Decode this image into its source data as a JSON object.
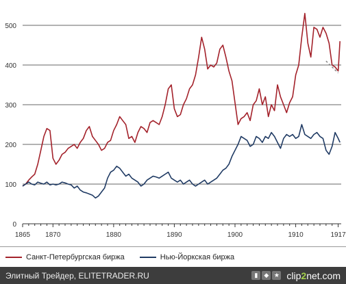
{
  "chart_data": {
    "type": "line",
    "title": "",
    "xlabel": "",
    "ylabel": "",
    "xlim": [
      1865,
      1917.5
    ],
    "ylim": [
      0,
      550
    ],
    "yticks": [
      0,
      100,
      200,
      300,
      400,
      500
    ],
    "xticks": [
      "1865",
      "1870",
      "1880",
      "1890",
      "1900",
      "1910",
      "1917"
    ],
    "xtick_values": [
      1865,
      1870,
      1880,
      1890,
      1900,
      1910,
      1917
    ],
    "grid": "horizontal",
    "legend": "bottom",
    "series": [
      {
        "name": "Санкт-Петербургская биржа",
        "color": "#a3212a",
        "x": [
          1865.0,
          1865.5,
          1866.0,
          1866.5,
          1867.0,
          1867.5,
          1868.0,
          1868.5,
          1869.0,
          1869.5,
          1870.0,
          1870.5,
          1871.0,
          1871.5,
          1872.0,
          1872.5,
          1873.0,
          1873.5,
          1874.0,
          1874.5,
          1875.0,
          1875.5,
          1876.0,
          1876.5,
          1877.0,
          1877.5,
          1878.0,
          1878.5,
          1879.0,
          1879.5,
          1880.0,
          1880.5,
          1881.0,
          1881.5,
          1882.0,
          1882.5,
          1883.0,
          1883.5,
          1884.0,
          1884.5,
          1885.0,
          1885.5,
          1886.0,
          1886.5,
          1887.0,
          1887.5,
          1888.0,
          1888.5,
          1889.0,
          1889.5,
          1890.0,
          1890.5,
          1891.0,
          1891.5,
          1892.0,
          1892.5,
          1893.0,
          1893.5,
          1894.0,
          1894.5,
          1895.0,
          1895.5,
          1896.0,
          1896.5,
          1897.0,
          1897.5,
          1898.0,
          1898.5,
          1899.0,
          1899.5,
          1900.0,
          1900.5,
          1901.0,
          1901.5,
          1902.0,
          1902.5,
          1903.0,
          1903.5,
          1904.0,
          1904.5,
          1905.0,
          1905.5,
          1906.0,
          1906.5,
          1907.0,
          1907.5,
          1908.0,
          1908.5,
          1909.0,
          1909.5,
          1910.0,
          1910.5,
          1911.0,
          1911.5,
          1912.0,
          1912.5,
          1913.0,
          1913.5,
          1914.0,
          1914.5,
          1915.0,
          1915.5,
          1916.0,
          1916.5,
          1917.0,
          1917.3
        ],
        "y": [
          95,
          100,
          110,
          118,
          125,
          150,
          185,
          220,
          240,
          235,
          165,
          150,
          160,
          175,
          180,
          190,
          195,
          200,
          190,
          205,
          215,
          235,
          245,
          220,
          210,
          200,
          185,
          190,
          205,
          210,
          235,
          250,
          270,
          260,
          250,
          215,
          220,
          205,
          230,
          245,
          240,
          230,
          255,
          260,
          255,
          250,
          270,
          300,
          340,
          350,
          290,
          270,
          275,
          300,
          315,
          340,
          350,
          375,
          420,
          470,
          440,
          390,
          400,
          395,
          405,
          440,
          450,
          420,
          385,
          360,
          305,
          250,
          265,
          270,
          280,
          260,
          300,
          310,
          340,
          300,
          320,
          270,
          300,
          285,
          350,
          320,
          300,
          280,
          305,
          320,
          375,
          400,
          470,
          530,
          455,
          420,
          495,
          490,
          470,
          495,
          480,
          455,
          400,
          395,
          385,
          460
        ]
      },
      {
        "name": "Нью-Йоркская биржа",
        "color": "#1f3a63",
        "x": [
          1865.0,
          1865.5,
          1866.0,
          1866.5,
          1867.0,
          1867.5,
          1868.0,
          1868.5,
          1869.0,
          1869.5,
          1870.0,
          1870.5,
          1871.0,
          1871.5,
          1872.0,
          1872.5,
          1873.0,
          1873.5,
          1874.0,
          1874.5,
          1875.0,
          1875.5,
          1876.0,
          1876.5,
          1877.0,
          1877.5,
          1878.0,
          1878.5,
          1879.0,
          1879.5,
          1880.0,
          1880.5,
          1881.0,
          1881.5,
          1882.0,
          1882.5,
          1883.0,
          1883.5,
          1884.0,
          1884.5,
          1885.0,
          1885.5,
          1886.0,
          1886.5,
          1887.0,
          1887.5,
          1888.0,
          1888.5,
          1889.0,
          1889.5,
          1890.0,
          1890.5,
          1891.0,
          1891.5,
          1892.0,
          1892.5,
          1893.0,
          1893.5,
          1894.0,
          1894.5,
          1895.0,
          1895.5,
          1896.0,
          1896.5,
          1897.0,
          1897.5,
          1898.0,
          1898.5,
          1899.0,
          1899.5,
          1900.0,
          1900.5,
          1901.0,
          1901.5,
          1902.0,
          1902.5,
          1903.0,
          1903.5,
          1904.0,
          1904.5,
          1905.0,
          1905.5,
          1906.0,
          1906.5,
          1907.0,
          1907.5,
          1908.0,
          1908.5,
          1909.0,
          1909.5,
          1910.0,
          1910.5,
          1911.0,
          1911.5,
          1912.0,
          1912.5,
          1913.0,
          1913.5,
          1914.0,
          1914.5,
          1915.0,
          1915.5,
          1916.0,
          1916.5,
          1917.0,
          1917.3
        ],
        "y": [
          95,
          100,
          105,
          100,
          98,
          105,
          102,
          100,
          105,
          98,
          100,
          98,
          100,
          105,
          103,
          100,
          98,
          90,
          95,
          85,
          80,
          78,
          75,
          72,
          65,
          70,
          80,
          90,
          115,
          130,
          135,
          145,
          140,
          130,
          120,
          125,
          115,
          110,
          105,
          95,
          100,
          110,
          115,
          120,
          118,
          115,
          120,
          125,
          130,
          115,
          110,
          105,
          110,
          100,
          105,
          110,
          100,
          95,
          100,
          105,
          110,
          100,
          105,
          110,
          115,
          125,
          135,
          140,
          150,
          170,
          185,
          200,
          220,
          215,
          210,
          195,
          200,
          220,
          215,
          205,
          220,
          215,
          230,
          220,
          205,
          190,
          215,
          225,
          220,
          225,
          215,
          220,
          250,
          225,
          220,
          215,
          225,
          230,
          220,
          215,
          185,
          175,
          195,
          230,
          215,
          205
        ]
      }
    ],
    "dashed_segment": {
      "color": "#888888",
      "x": [
        1915.0,
        1917.0
      ],
      "y": [
        410,
        380
      ]
    }
  },
  "footer": {
    "caption": "Элитный Трейдер, ELITETRADER.RU",
    "brand_prefix": "clip",
    "brand_two": "2",
    "brand_suffix": "net.com"
  }
}
